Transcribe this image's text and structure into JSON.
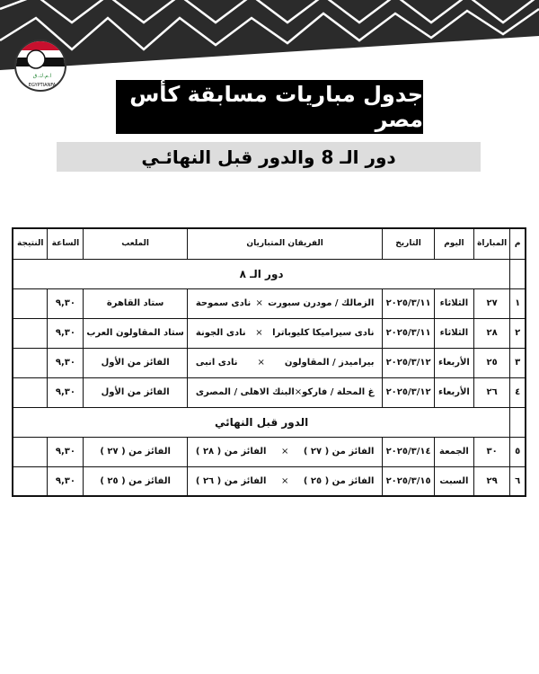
{
  "logo": {
    "text_ar": "الاتحاد المصري لكرة القدم",
    "text_en": "EGYPTIANFA"
  },
  "title": "جدول مباريات مسابقة كأس مصر",
  "subtitle": "دور الـ 8  والدور قبل النهائـي",
  "table": {
    "headers": [
      "م",
      "المباراة",
      "اليوم",
      "التاريخ",
      "الفريقان المتباريان",
      "الملعب",
      "الساعة",
      "النتيجة"
    ],
    "vs": "×",
    "sections": [
      {
        "label": "دور الـ ٨",
        "rows": [
          {
            "n": "١",
            "match": "٢٧",
            "day": "الثلاثاء",
            "date": "٢٠٢٥/٣/١١",
            "home": "الزمالك / مودرن سبورت",
            "away": "نادى سموحة",
            "venue": "ستاد القاهرة",
            "time": "٩,٣٠",
            "result": ""
          },
          {
            "n": "٢",
            "match": "٢٨",
            "day": "الثلاثاء",
            "date": "٢٠٢٥/٣/١١",
            "home": "نادى سيراميكا كليوباترا",
            "away": "نادى الجونة",
            "venue": "ستاد المقاولون العرب",
            "time": "٩,٣٠",
            "result": ""
          },
          {
            "n": "٣",
            "match": "٢٥",
            "day": "الأربعاء",
            "date": "٢٠٢٥/٣/١٢",
            "home": "بيراميدز / المقاولون",
            "away": "نادى انبى",
            "venue": "الفائز من الأول",
            "time": "٩,٣٠",
            "result": ""
          },
          {
            "n": "٤",
            "match": "٢٦",
            "day": "الأربعاء",
            "date": "٢٠٢٥/٣/١٢",
            "home": "غ المحلة / فاركو",
            "away": "البنك الاهلى / المصرى",
            "venue": "الفائز من الأول",
            "time": "٩,٣٠",
            "result": ""
          }
        ]
      },
      {
        "label": "الدور قبل النهائي",
        "rows": [
          {
            "n": "٥",
            "match": "٣٠",
            "day": "الجمعة",
            "date": "٢٠٢٥/٣/١٤",
            "home": "الفائز من ( ٢٧ )",
            "away": "الفائز من ( ٢٨ )",
            "venue": "الفائز من ( ٢٧ )",
            "time": "٩,٣٠",
            "result": ""
          },
          {
            "n": "٦",
            "match": "٢٩",
            "day": "السبت",
            "date": "٢٠٢٥/٣/١٥",
            "home": "الفائز من ( ٢٥ )",
            "away": "الفائز من ( ٢٦ )",
            "venue": "الفائز من ( ٢٥ )",
            "time": "٩,٣٠",
            "result": ""
          }
        ]
      }
    ]
  }
}
